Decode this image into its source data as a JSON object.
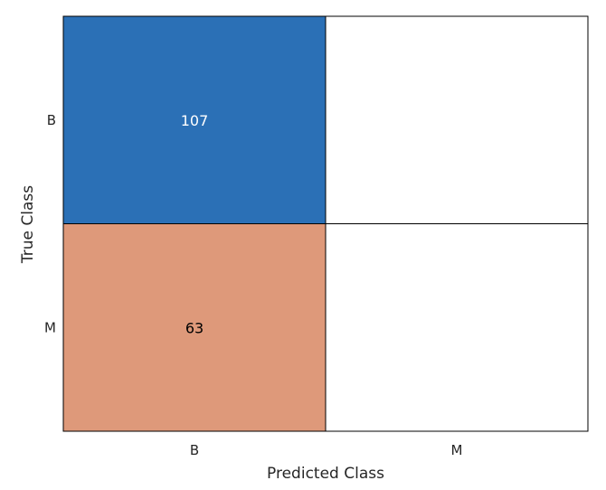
{
  "chart_data": {
    "type": "heatmap",
    "title": "",
    "xlabel": "Predicted Class",
    "ylabel": "True Class",
    "x_categories": [
      "B",
      "M"
    ],
    "y_categories": [
      "B",
      "M"
    ],
    "values": [
      [
        107,
        null
      ],
      [
        63,
        null
      ]
    ],
    "cell_colors": [
      [
        "#2b70b6",
        "#ffffff"
      ],
      [
        "#de997a",
        "#ffffff"
      ]
    ],
    "text_colors": [
      [
        "#ffffff",
        "#000000"
      ],
      [
        "#000000",
        "#000000"
      ]
    ],
    "grid": true
  }
}
